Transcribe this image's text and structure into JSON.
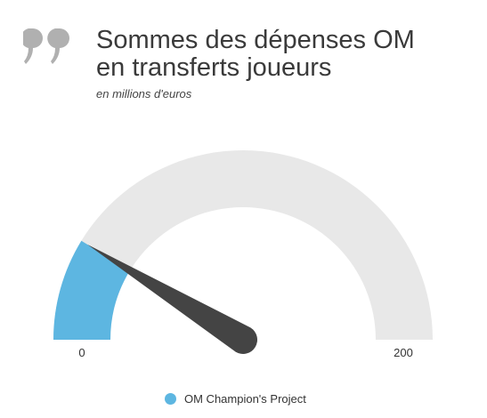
{
  "header": {
    "title_line1": "Sommes des dépenses OM",
    "title_line2": "en transferts joueurs",
    "subtitle": "en millions d'euros",
    "icon": "quote-icon"
  },
  "colors": {
    "fill": "#5db6e1",
    "track": "#e8e8e8",
    "needle": "#444444",
    "quote_icon": "#b0b0b0"
  },
  "chart_data": {
    "type": "gauge",
    "min": 0,
    "max": 200,
    "value": 35,
    "tick_labels": [
      "0",
      "200"
    ],
    "series": [
      {
        "name": "OM Champion's Project",
        "value": 35
      }
    ],
    "legend_position": "bottom"
  }
}
